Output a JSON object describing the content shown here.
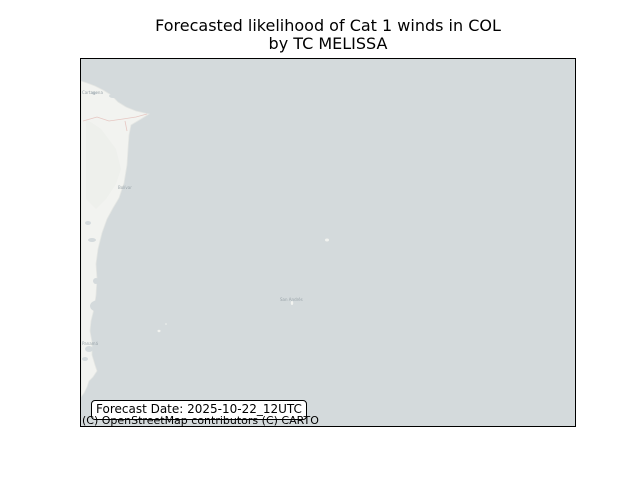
{
  "figure": {
    "title_line1": "Forecasted likelihood of Cat 1 winds in COL",
    "title_line2": "by TC MELISSA"
  },
  "map": {
    "background": "#d4dadc",
    "land_color": "#f2f3f0",
    "place_labels": {
      "north": "Cartagena",
      "middle": "Bolívar",
      "island": "San Andrés",
      "south": "Panamá"
    }
  },
  "annotations": {
    "forecast_date": "Forecast Date: 2025-10-22_12UTC",
    "attribution": "(C) OpenStreetMap contributors (C) CARTO"
  }
}
